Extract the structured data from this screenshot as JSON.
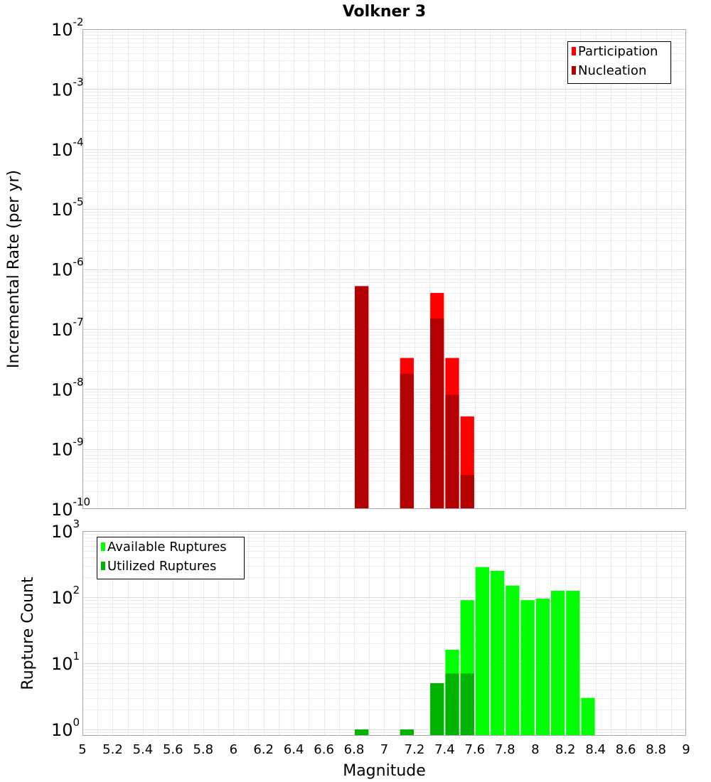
{
  "chart_data": [
    {
      "type": "bar",
      "title": "Volkner 3",
      "ylabel": "Incremental Rate (per yr)",
      "yscale": "log",
      "ylim": [
        1e-10,
        0.01
      ],
      "xlim": [
        5,
        9
      ],
      "grid": true,
      "legend_position": "top-right",
      "ytick_labels": [
        {
          "base": "10",
          "exp": "-10"
        },
        {
          "base": "10",
          "exp": "-9"
        },
        {
          "base": "10",
          "exp": "-8"
        },
        {
          "base": "10",
          "exp": "-7"
        },
        {
          "base": "10",
          "exp": "-6"
        },
        {
          "base": "10",
          "exp": "-5"
        },
        {
          "base": "10",
          "exp": "-4"
        },
        {
          "base": "10",
          "exp": "-3"
        },
        {
          "base": "10",
          "exp": "-2"
        }
      ],
      "series": [
        {
          "name": "Participation",
          "color": "#ff0000",
          "x": [
            6.85,
            7.15,
            7.35,
            7.45,
            7.55
          ],
          "values": [
            5.2e-07,
            3.3e-08,
            4e-07,
            3.3e-08,
            3.5e-09
          ]
        },
        {
          "name": "Nucleation",
          "color": "#b30000",
          "x": [
            6.85,
            7.15,
            7.35,
            7.45,
            7.55
          ],
          "values": [
            5.2e-07,
            1.8e-08,
            1.5e-07,
            8e-09,
            3.7e-10
          ]
        }
      ]
    },
    {
      "type": "bar",
      "title": "",
      "xlabel": "Magnitude",
      "ylabel": "Rupture Count",
      "yscale": "log",
      "ylim": [
        0.8,
        1000
      ],
      "xlim": [
        5,
        9
      ],
      "grid": true,
      "legend_position": "top-left",
      "ytick_labels": [
        {
          "base": "10",
          "exp": "0"
        },
        {
          "base": "10",
          "exp": "1"
        },
        {
          "base": "10",
          "exp": "2"
        },
        {
          "base": "10",
          "exp": "3"
        }
      ],
      "xtick_labels": [
        "5",
        "5.2",
        "5.4",
        "5.6",
        "5.8",
        "6",
        "6.2",
        "6.4",
        "6.6",
        "6.8",
        "7",
        "7.2",
        "7.4",
        "7.6",
        "7.8",
        "8",
        "8.2",
        "8.4",
        "8.6",
        "8.8",
        "9"
      ],
      "series": [
        {
          "name": "Available Ruptures",
          "color": "#00ff00",
          "x": [
            6.85,
            7.15,
            7.35,
            7.45,
            7.55,
            7.65,
            7.75,
            7.85,
            7.95,
            8.05,
            8.15,
            8.25,
            8.35
          ],
          "values": [
            1,
            1,
            5,
            16,
            90,
            285,
            250,
            150,
            90,
            95,
            125,
            125,
            3
          ]
        },
        {
          "name": "Utilized Ruptures",
          "color": "#00b300",
          "x": [
            6.85,
            7.15,
            7.35,
            7.45,
            7.55
          ],
          "values": [
            1,
            1,
            5,
            7,
            7
          ]
        }
      ]
    }
  ]
}
